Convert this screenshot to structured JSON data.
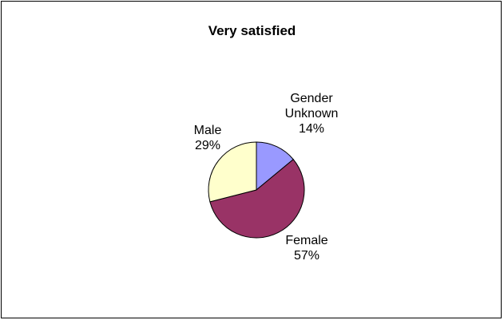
{
  "chart_data": {
    "type": "pie",
    "title": "Very satisfied",
    "slices": [
      {
        "label": "Gender Unknown",
        "value": 14,
        "percent_label": "14%",
        "color": "#9999ff"
      },
      {
        "label": "Female",
        "value": 57,
        "percent_label": "57%",
        "color": "#993366"
      },
      {
        "label": "Male",
        "value": 29,
        "percent_label": "29%",
        "color": "#ffffcc"
      }
    ]
  }
}
